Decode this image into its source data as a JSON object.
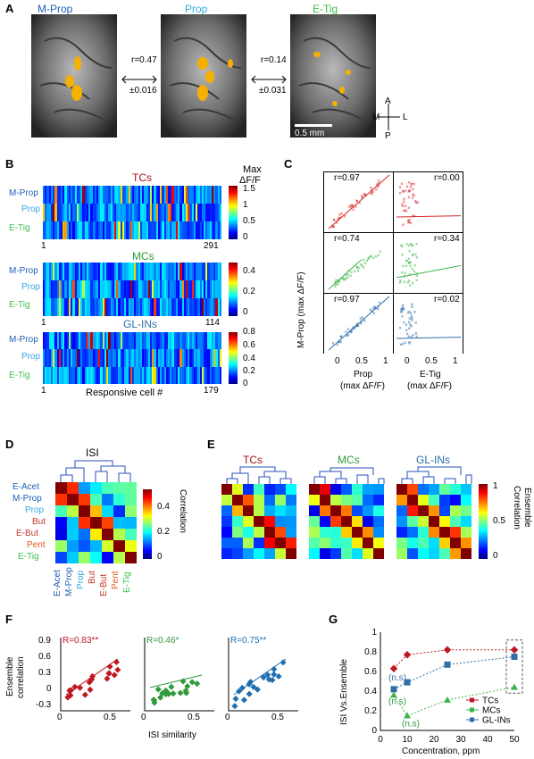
{
  "panel_labels": {
    "a": "A",
    "b": "B",
    "c": "C",
    "d": "D",
    "e": "E",
    "f": "F",
    "g": "G"
  },
  "panelA": {
    "maps": [
      "M-Prop",
      "Prop",
      "E-Tig"
    ],
    "arrow1": {
      "r": "r=0.47",
      "pm": "±0.016"
    },
    "arrow2": {
      "r": "r=0.14",
      "pm": "±0.031"
    },
    "scale": "0.5 mm",
    "compass": {
      "a": "A",
      "p": "P",
      "m": "M",
      "l": "L"
    }
  },
  "panelB": {
    "rows": [
      "M-Prop",
      "Prop",
      "E-Tig"
    ],
    "heatmaps": [
      {
        "title": "TCs",
        "start": "1",
        "end": "291",
        "ticks": [
          "1.5",
          "1",
          "0.5",
          "0"
        ]
      },
      {
        "title": "MCs",
        "start": "1",
        "end": "114",
        "ticks": [
          "0.4",
          "0.2",
          "0"
        ]
      },
      {
        "title": "GL-INs",
        "start": "1",
        "end": "179",
        "ticks": [
          "0.8",
          "0.6",
          "0.4",
          "0.2",
          "0"
        ]
      }
    ],
    "cbar_title1": "Max",
    "cbar_title2": "ΔF/F",
    "xlabel": "Responsive cell #"
  },
  "panelC": {
    "r_left": [
      "r=0.97",
      "r=0.74",
      "r=0.97"
    ],
    "r_right": [
      "r=0.00",
      "r=0.34",
      "r=0.02"
    ],
    "ylabel": "M-Prop  (max ΔF/F)",
    "xlabel_left1": "Prop",
    "xlabel_left2": "(max ΔF/F)",
    "xlabel_right1": "E-Tig",
    "xlabel_right2": "(max ΔF/F)",
    "ticks_left": [
      "0",
      "0.5",
      "1"
    ],
    "ticks_right": [
      "0",
      "0.5",
      "1"
    ],
    "colors": [
      "#d62728",
      "#3db54a",
      "#2f6fa8"
    ]
  },
  "panelD": {
    "title": "ISI",
    "odors": [
      "E-Acet",
      "M-Prop",
      "Prop",
      "But",
      "E-But",
      "Pent",
      "E-Tig"
    ],
    "cbar_ticks": [
      "0.4",
      "0.2",
      "0"
    ],
    "cbar_label": "Correlation"
  },
  "panelE": {
    "titles": [
      "TCs",
      "MCs",
      "GL-INs"
    ],
    "cbar_ticks": [
      "1",
      "0.5",
      "0"
    ],
    "cbar_label1": "Ensemble",
    "cbar_label2": "Correlation"
  },
  "panelF": {
    "ylabel1": "Ensemble",
    "ylabel2": "correlation",
    "xlabel": "ISI similarity",
    "yticks": [
      "0.9",
      "0.6",
      "0.3",
      "0",
      "-0.3"
    ],
    "xticks": [
      "0",
      "0.5"
    ],
    "plots": [
      {
        "label": "R=0.83**",
        "color": "#c0161f"
      },
      {
        "label": "R=0.46*",
        "color": "#2e9a3a"
      },
      {
        "label": "R=0.75**",
        "color": "#1f6fb0"
      }
    ]
  },
  "panelG": {
    "ylabel": "ISI Vs.Ensemble",
    "xlabel": "Concentration, ppm",
    "ns": "(n.s)",
    "legend": [
      "TCs",
      "MCs",
      "GL-INs"
    ]
  },
  "chart_data": [
    {
      "type": "scatter",
      "panel": "G",
      "xlabel": "Concentration, ppm",
      "ylabel": "ISI Vs.Ensemble",
      "xlim": [
        0,
        50
      ],
      "ylim": [
        0,
        1
      ],
      "xticks": [
        0,
        10,
        20,
        30,
        40,
        50
      ],
      "yticks": [
        0,
        0.2,
        0.4,
        0.6,
        0.8,
        1
      ],
      "series": [
        {
          "name": "TCs",
          "color": "#c0161f",
          "marker": "diamond",
          "x": [
            5,
            10,
            25,
            50
          ],
          "y": [
            0.63,
            0.77,
            0.82,
            0.82
          ]
        },
        {
          "name": "MCs",
          "color": "#3db54a",
          "marker": "triangle",
          "x": [
            5,
            10,
            25,
            50
          ],
          "y": [
            0.36,
            0.15,
            0.31,
            0.44
          ]
        },
        {
          "name": "GL-INs",
          "color": "#2f6fa8",
          "marker": "square",
          "x": [
            5,
            10,
            25,
            50
          ],
          "y": [
            0.42,
            0.49,
            0.67,
            0.75
          ]
        }
      ]
    }
  ]
}
